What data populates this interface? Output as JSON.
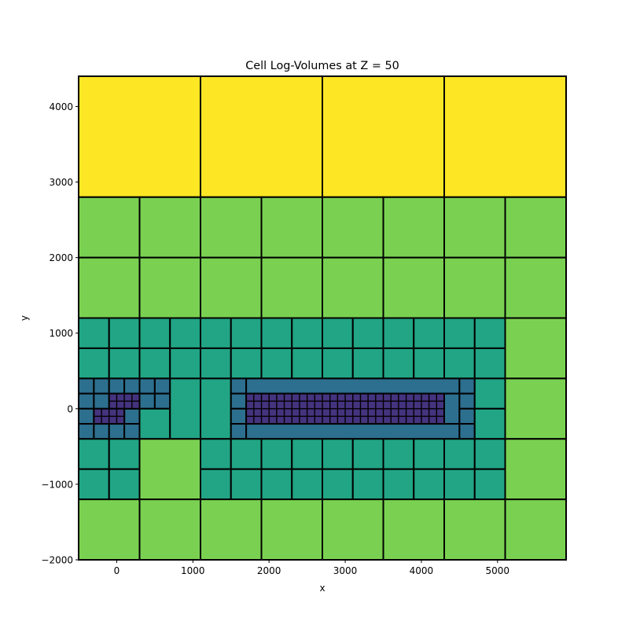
{
  "chart_data": {
    "type": "heatmap",
    "title": "Cell Log-Volumes at Z = 50",
    "xlabel": "x",
    "ylabel": "y",
    "xlim": [
      -500,
      5900
    ],
    "ylim": [
      -2000,
      4400
    ],
    "grid": false,
    "legend": "none",
    "x_ticks": [
      0,
      1000,
      2000,
      3000,
      4000,
      5000
    ],
    "x_tick_labels": [
      "0",
      "1000",
      "2000",
      "3000",
      "4000",
      "5000"
    ],
    "y_ticks": [
      -2000,
      -1000,
      0,
      1000,
      2000,
      3000,
      4000
    ],
    "y_tick_labels": [
      "−2000",
      "−1000",
      "0",
      "1000",
      "2000",
      "3000",
      "4000"
    ],
    "level_colors": {
      "0": "#2a0a4a",
      "1": "#44337e",
      "2": "#2d6f8e",
      "3": "#21a585",
      "4": "#7ad151",
      "5": "#fde725"
    },
    "cells": [
      {
        "x0": -500,
        "x1": 1100,
        "y0": 2800,
        "y1": 4400,
        "level": 5
      },
      {
        "x0": 1100,
        "x1": 2700,
        "y0": 2800,
        "y1": 4400,
        "level": 5
      },
      {
        "x0": 2700,
        "x1": 4300,
        "y0": 2800,
        "y1": 4400,
        "level": 5
      },
      {
        "x0": 4300,
        "x1": 5900,
        "y0": 2800,
        "y1": 4400,
        "level": 5
      },
      {
        "x0": -500,
        "x1": 300,
        "y0": 2000,
        "y1": 2800,
        "level": 4
      },
      {
        "x0": 300,
        "x1": 1100,
        "y0": 2000,
        "y1": 2800,
        "level": 4
      },
      {
        "x0": 1100,
        "x1": 1900,
        "y0": 2000,
        "y1": 2800,
        "level": 4
      },
      {
        "x0": 1900,
        "x1": 2700,
        "y0": 2000,
        "y1": 2800,
        "level": 4
      },
      {
        "x0": 2700,
        "x1": 3500,
        "y0": 2000,
        "y1": 2800,
        "level": 4
      },
      {
        "x0": 3500,
        "x1": 4300,
        "y0": 2000,
        "y1": 2800,
        "level": 4
      },
      {
        "x0": 4300,
        "x1": 5100,
        "y0": 2000,
        "y1": 2800,
        "level": 4
      },
      {
        "x0": 5100,
        "x1": 5900,
        "y0": 2000,
        "y1": 2800,
        "level": 4
      },
      {
        "x0": -500,
        "x1": 300,
        "y0": 1200,
        "y1": 2000,
        "level": 4
      },
      {
        "x0": 300,
        "x1": 1100,
        "y0": 1200,
        "y1": 2000,
        "level": 4
      },
      {
        "x0": 1100,
        "x1": 1900,
        "y0": 1200,
        "y1": 2000,
        "level": 4
      },
      {
        "x0": 1900,
        "x1": 2700,
        "y0": 1200,
        "y1": 2000,
        "level": 4
      },
      {
        "x0": 2700,
        "x1": 3500,
        "y0": 1200,
        "y1": 2000,
        "level": 4
      },
      {
        "x0": 3500,
        "x1": 4300,
        "y0": 1200,
        "y1": 2000,
        "level": 4
      },
      {
        "x0": 4300,
        "x1": 5100,
        "y0": 1200,
        "y1": 2000,
        "level": 4
      },
      {
        "x0": 5100,
        "x1": 5900,
        "y0": 1200,
        "y1": 2000,
        "level": 4
      },
      {
        "x0": -500,
        "x1": -100,
        "y0": 800,
        "y1": 1200,
        "level": 3
      },
      {
        "x0": -100,
        "x1": 300,
        "y0": 800,
        "y1": 1200,
        "level": 3
      },
      {
        "x0": 300,
        "x1": 700,
        "y0": 800,
        "y1": 1200,
        "level": 3
      },
      {
        "x0": 700,
        "x1": 1100,
        "y0": 800,
        "y1": 1200,
        "level": 3
      },
      {
        "x0": 1100,
        "x1": 1500,
        "y0": 800,
        "y1": 1200,
        "level": 3
      },
      {
        "x0": 1500,
        "x1": 1900,
        "y0": 800,
        "y1": 1200,
        "level": 3
      },
      {
        "x0": 1900,
        "x1": 2300,
        "y0": 800,
        "y1": 1200,
        "level": 3
      },
      {
        "x0": 2300,
        "x1": 2700,
        "y0": 800,
        "y1": 1200,
        "level": 3
      },
      {
        "x0": 2700,
        "x1": 3100,
        "y0": 800,
        "y1": 1200,
        "level": 3
      },
      {
        "x0": 3100,
        "x1": 3500,
        "y0": 800,
        "y1": 1200,
        "level": 3
      },
      {
        "x0": 3500,
        "x1": 3900,
        "y0": 800,
        "y1": 1200,
        "level": 3
      },
      {
        "x0": 3900,
        "x1": 4300,
        "y0": 800,
        "y1": 1200,
        "level": 3
      },
      {
        "x0": 4300,
        "x1": 4700,
        "y0": 800,
        "y1": 1200,
        "level": 3
      },
      {
        "x0": 4700,
        "x1": 5100,
        "y0": 800,
        "y1": 1200,
        "level": 3
      },
      {
        "x0": 5100,
        "x1": 5900,
        "y0": 400,
        "y1": 1200,
        "level": 4
      },
      {
        "x0": -500,
        "x1": -100,
        "y0": 400,
        "y1": 800,
        "level": 3
      },
      {
        "x0": -100,
        "x1": 300,
        "y0": 400,
        "y1": 800,
        "level": 3
      },
      {
        "x0": 300,
        "x1": 700,
        "y0": 400,
        "y1": 800,
        "level": 3
      },
      {
        "x0": 700,
        "x1": 1100,
        "y0": 400,
        "y1": 800,
        "level": 3
      },
      {
        "x0": 1100,
        "x1": 1500,
        "y0": 400,
        "y1": 800,
        "level": 3
      },
      {
        "x0": 1500,
        "x1": 1900,
        "y0": 400,
        "y1": 800,
        "level": 3
      },
      {
        "x0": 1900,
        "x1": 2300,
        "y0": 400,
        "y1": 800,
        "level": 3
      },
      {
        "x0": 2300,
        "x1": 2700,
        "y0": 400,
        "y1": 800,
        "level": 3
      },
      {
        "x0": 2700,
        "x1": 3100,
        "y0": 400,
        "y1": 800,
        "level": 3
      },
      {
        "x0": 3100,
        "x1": 3500,
        "y0": 400,
        "y1": 800,
        "level": 3
      },
      {
        "x0": 3500,
        "x1": 3900,
        "y0": 400,
        "y1": 800,
        "level": 3
      },
      {
        "x0": 3900,
        "x1": 4300,
        "y0": 400,
        "y1": 800,
        "level": 3
      },
      {
        "x0": 4300,
        "x1": 4700,
        "y0": 400,
        "y1": 800,
        "level": 3
      },
      {
        "x0": 4700,
        "x1": 5100,
        "y0": 400,
        "y1": 800,
        "level": 3
      },
      {
        "x0": -500,
        "x1": -300,
        "y0": 200,
        "y1": 400,
        "level": 2
      },
      {
        "x0": -300,
        "x1": -100,
        "y0": 200,
        "y1": 400,
        "level": 2
      },
      {
        "x0": -100,
        "x1": 100,
        "y0": 200,
        "y1": 400,
        "level": 2
      },
      {
        "x0": 100,
        "x1": 300,
        "y0": 200,
        "y1": 400,
        "level": 2
      },
      {
        "x0": 300,
        "x1": 500,
        "y0": 200,
        "y1": 400,
        "level": 2
      },
      {
        "x0": 500,
        "x1": 700,
        "y0": 200,
        "y1": 400,
        "level": 2
      },
      {
        "x0": -500,
        "x1": -300,
        "y0": 0,
        "y1": 200,
        "level": 2
      },
      {
        "x0": -300,
        "x1": -100,
        "y0": 0,
        "y1": 200,
        "level": 2
      },
      {
        "x0": 300,
        "x1": 500,
        "y0": 0,
        "y1": 200,
        "level": 2
      },
      {
        "x0": 500,
        "x1": 700,
        "y0": 0,
        "y1": 200,
        "level": 2
      },
      {
        "x0": -500,
        "x1": -300,
        "y0": -200,
        "y1": 0,
        "level": 2
      },
      {
        "x0": 100,
        "x1": 300,
        "y0": -200,
        "y1": 0,
        "level": 2
      },
      {
        "x0": -500,
        "x1": -300,
        "y0": -400,
        "y1": -200,
        "level": 2
      },
      {
        "x0": -300,
        "x1": -100,
        "y0": -400,
        "y1": -200,
        "level": 2
      },
      {
        "x0": -100,
        "x1": 100,
        "y0": -400,
        "y1": -200,
        "level": 2
      },
      {
        "x0": 100,
        "x1": 300,
        "y0": -400,
        "y1": -200,
        "level": 2
      },
      {
        "x0": -100,
        "x1": 300,
        "y0": 0,
        "y1": 200,
        "level": 1
      },
      {
        "x0": -300,
        "x1": 100,
        "y0": -200,
        "y1": 0,
        "level": 1
      },
      {
        "x0": 300,
        "x1": 700,
        "y0": -400,
        "y1": 0,
        "level": 3
      },
      {
        "x0": 700,
        "x1": 1100,
        "y0": -400,
        "y1": 400,
        "level": 3
      },
      {
        "x0": 1100,
        "x1": 1500,
        "y0": -400,
        "y1": 400,
        "level": 3
      },
      {
        "x0": 1500,
        "x1": 1700,
        "y0": 200,
        "y1": 400,
        "level": 2
      },
      {
        "x0": 1500,
        "x1": 1700,
        "y0": 0,
        "y1": 200,
        "level": 2
      },
      {
        "x0": 1500,
        "x1": 1700,
        "y0": -200,
        "y1": 0,
        "level": 2
      },
      {
        "x0": 1500,
        "x1": 1700,
        "y0": -400,
        "y1": -200,
        "level": 2
      },
      {
        "x0": 1700,
        "x1": 4500,
        "y0": 200,
        "y1": 400,
        "level": 2
      },
      {
        "x0": 1700,
        "x1": 4500,
        "y0": -400,
        "y1": -200,
        "level": 2
      },
      {
        "x0": 1700,
        "x1": 4300,
        "y0": -200,
        "y1": 200,
        "level": 1
      },
      {
        "x0": 4300,
        "x1": 4500,
        "y0": -200,
        "y1": 200,
        "level": 2
      },
      {
        "x0": 4500,
        "x1": 4700,
        "y0": 200,
        "y1": 400,
        "level": 2
      },
      {
        "x0": 4500,
        "x1": 4700,
        "y0": 0,
        "y1": 200,
        "level": 2
      },
      {
        "x0": 4500,
        "x1": 4700,
        "y0": -200,
        "y1": 0,
        "level": 2
      },
      {
        "x0": 4500,
        "x1": 4700,
        "y0": -400,
        "y1": -200,
        "level": 2
      },
      {
        "x0": 4700,
        "x1": 5100,
        "y0": 0,
        "y1": 400,
        "level": 3
      },
      {
        "x0": 4700,
        "x1": 5100,
        "y0": -400,
        "y1": 0,
        "level": 3
      },
      {
        "x0": 5100,
        "x1": 5900,
        "y0": -400,
        "y1": 400,
        "level": 4
      },
      {
        "x0": -500,
        "x1": -100,
        "y0": -800,
        "y1": -400,
        "level": 3
      },
      {
        "x0": -100,
        "x1": 300,
        "y0": -800,
        "y1": -400,
        "level": 3
      },
      {
        "x0": -500,
        "x1": -100,
        "y0": -1200,
        "y1": -800,
        "level": 3
      },
      {
        "x0": -100,
        "x1": 300,
        "y0": -1200,
        "y1": -800,
        "level": 3
      },
      {
        "x0": 300,
        "x1": 1100,
        "y0": -1200,
        "y1": -400,
        "level": 4
      },
      {
        "x0": 1100,
        "x1": 1500,
        "y0": -800,
        "y1": -400,
        "level": 3
      },
      {
        "x0": 1500,
        "x1": 1900,
        "y0": -800,
        "y1": -400,
        "level": 3
      },
      {
        "x0": 1900,
        "x1": 2300,
        "y0": -800,
        "y1": -400,
        "level": 3
      },
      {
        "x0": 2300,
        "x1": 2700,
        "y0": -800,
        "y1": -400,
        "level": 3
      },
      {
        "x0": 2700,
        "x1": 3100,
        "y0": -800,
        "y1": -400,
        "level": 3
      },
      {
        "x0": 3100,
        "x1": 3500,
        "y0": -800,
        "y1": -400,
        "level": 3
      },
      {
        "x0": 3500,
        "x1": 3900,
        "y0": -800,
        "y1": -400,
        "level": 3
      },
      {
        "x0": 3900,
        "x1": 4300,
        "y0": -800,
        "y1": -400,
        "level": 3
      },
      {
        "x0": 4300,
        "x1": 4700,
        "y0": -800,
        "y1": -400,
        "level": 3
      },
      {
        "x0": 4700,
        "x1": 5100,
        "y0": -800,
        "y1": -400,
        "level": 3
      },
      {
        "x0": 1100,
        "x1": 1500,
        "y0": -1200,
        "y1": -800,
        "level": 3
      },
      {
        "x0": 1500,
        "x1": 1900,
        "y0": -1200,
        "y1": -800,
        "level": 3
      },
      {
        "x0": 1900,
        "x1": 2300,
        "y0": -1200,
        "y1": -800,
        "level": 3
      },
      {
        "x0": 2300,
        "x1": 2700,
        "y0": -1200,
        "y1": -800,
        "level": 3
      },
      {
        "x0": 2700,
        "x1": 3100,
        "y0": -1200,
        "y1": -800,
        "level": 3
      },
      {
        "x0": 3100,
        "x1": 3500,
        "y0": -1200,
        "y1": -800,
        "level": 3
      },
      {
        "x0": 3500,
        "x1": 3900,
        "y0": -1200,
        "y1": -800,
        "level": 3
      },
      {
        "x0": 3900,
        "x1": 4300,
        "y0": -1200,
        "y1": -800,
        "level": 3
      },
      {
        "x0": 4300,
        "x1": 4700,
        "y0": -1200,
        "y1": -800,
        "level": 3
      },
      {
        "x0": 4700,
        "x1": 5100,
        "y0": -1200,
        "y1": -800,
        "level": 3
      },
      {
        "x0": 5100,
        "x1": 5900,
        "y0": -1200,
        "y1": -400,
        "level": 4
      },
      {
        "x0": -500,
        "x1": 300,
        "y0": -2000,
        "y1": -1200,
        "level": 4
      },
      {
        "x0": 300,
        "x1": 1100,
        "y0": -2000,
        "y1": -1200,
        "level": 4
      },
      {
        "x0": 1100,
        "x1": 1900,
        "y0": -2000,
        "y1": -1200,
        "level": 4
      },
      {
        "x0": 1900,
        "x1": 2700,
        "y0": -2000,
        "y1": -1200,
        "level": 4
      },
      {
        "x0": 2700,
        "x1": 3500,
        "y0": -2000,
        "y1": -1200,
        "level": 4
      },
      {
        "x0": 3500,
        "x1": 4300,
        "y0": -2000,
        "y1": -1200,
        "level": 4
      },
      {
        "x0": 4300,
        "x1": 5100,
        "y0": -2000,
        "y1": -1200,
        "level": 4
      },
      {
        "x0": 5100,
        "x1": 5900,
        "y0": -2000,
        "y1": -1200,
        "level": 4
      }
    ],
    "fine_subdivision": [
      {
        "x0": -100,
        "x1": 300,
        "y0": 0,
        "y1": 200,
        "step": 100
      },
      {
        "x0": -300,
        "x1": 100,
        "y0": -200,
        "y1": 0,
        "step": 100
      },
      {
        "x0": 1700,
        "x1": 4300,
        "y0": -200,
        "y1": 200,
        "step": 100
      }
    ]
  }
}
